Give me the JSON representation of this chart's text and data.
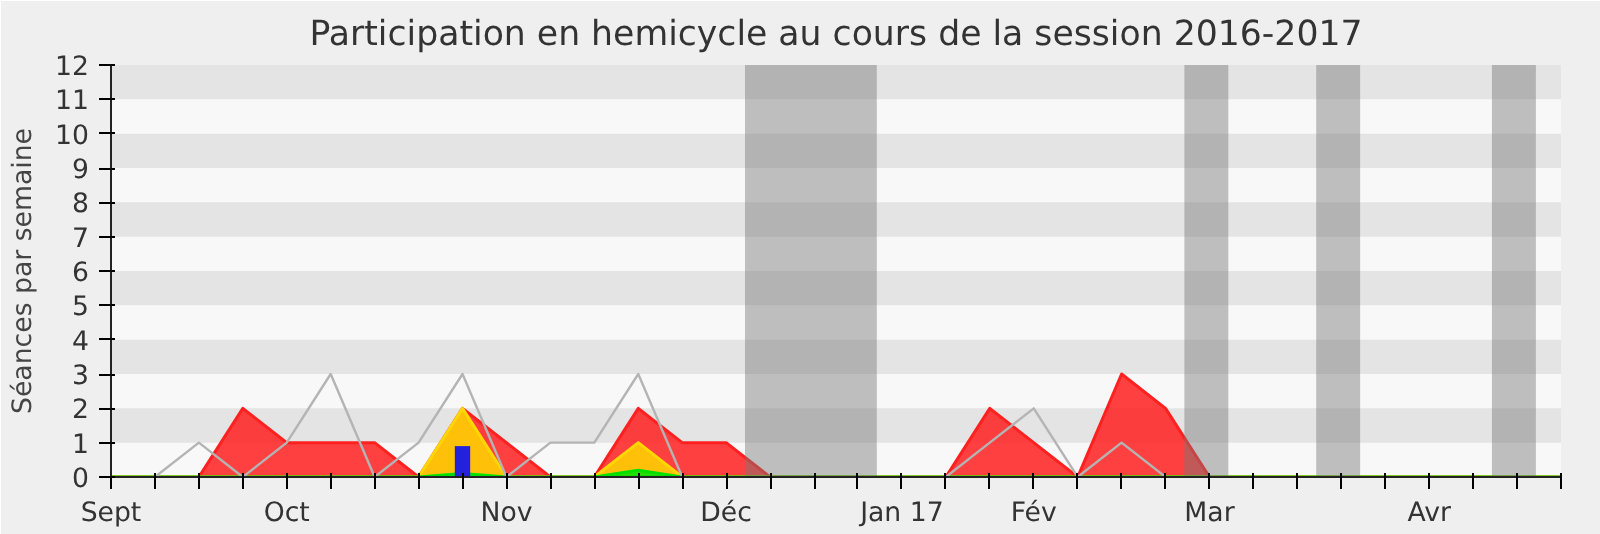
{
  "chart_data": {
    "type": "area",
    "title": "Participation en hemicycle au cours de la session 2016-2017",
    "ylabel": "Séances par semaine",
    "x": [
      "2016-09-12",
      "2016-09-19",
      "2016-09-26",
      "2016-10-03",
      "2016-10-10",
      "2016-10-17",
      "2016-10-24",
      "2016-10-31",
      "2016-11-07",
      "2016-11-14",
      "2016-11-21",
      "2016-11-28",
      "2016-12-05",
      "2016-12-12",
      "2016-12-19",
      "2016-12-26",
      "2017-01-02",
      "2017-01-09",
      "2017-01-16",
      "2017-01-23",
      "2017-01-30",
      "2017-02-06",
      "2017-02-13",
      "2017-02-20",
      "2017-02-27",
      "2017-03-06",
      "2017-03-13",
      "2017-03-20",
      "2017-03-27",
      "2017-04-03",
      "2017-04-10",
      "2017-04-17",
      "2017-04-24",
      "2017-05-01"
    ],
    "xlim": [
      "2016-09-12",
      "2017-05-01"
    ],
    "ylim": [
      0,
      12
    ],
    "yticks": [
      0,
      1,
      2,
      3,
      4,
      5,
      6,
      7,
      8,
      9,
      10,
      11,
      12
    ],
    "xticks": [
      {
        "value": "2016-09-12",
        "label": "Sept"
      },
      {
        "value": "2016-09-19",
        "label": null
      },
      {
        "value": "2016-09-26",
        "label": null
      },
      {
        "value": "2016-10-03",
        "label": null
      },
      {
        "value": "2016-10-10",
        "label": "Oct"
      },
      {
        "value": "2016-10-17",
        "label": null
      },
      {
        "value": "2016-10-24",
        "label": null
      },
      {
        "value": "2016-10-31",
        "label": null
      },
      {
        "value": "2016-11-07",
        "label": null
      },
      {
        "value": "2016-11-14",
        "label": "Nov"
      },
      {
        "value": "2016-11-21",
        "label": null
      },
      {
        "value": "2016-11-28",
        "label": null
      },
      {
        "value": "2016-12-05",
        "label": null
      },
      {
        "value": "2016-12-12",
        "label": null
      },
      {
        "value": "2016-12-19",
        "label": "Déc"
      },
      {
        "value": "2016-12-26",
        "label": null
      },
      {
        "value": "2017-01-02",
        "label": null
      },
      {
        "value": "2017-01-09",
        "label": null
      },
      {
        "value": "2017-01-16",
        "label": "Jan 17"
      },
      {
        "value": "2017-01-23",
        "label": null
      },
      {
        "value": "2017-01-30",
        "label": null
      },
      {
        "value": "2017-02-06",
        "label": "Fév"
      },
      {
        "value": "2017-02-13",
        "label": null
      },
      {
        "value": "2017-02-20",
        "label": null
      },
      {
        "value": "2017-02-27",
        "label": null
      },
      {
        "value": "2017-03-06",
        "label": "Mar"
      },
      {
        "value": "2017-03-13",
        "label": null
      },
      {
        "value": "2017-03-20",
        "label": null
      },
      {
        "value": "2017-03-27",
        "label": null
      },
      {
        "value": "2017-04-03",
        "label": null
      },
      {
        "value": "2017-04-10",
        "label": "Avr"
      },
      {
        "value": "2017-04-17",
        "label": null
      },
      {
        "value": "2017-04-24",
        "label": null
      },
      {
        "value": "2017-05-01",
        "label": null
      }
    ],
    "bands": [
      {
        "axis": "x",
        "from": "2016-12-22",
        "to": "2017-01-12",
        "color": "#777777"
      },
      {
        "axis": "x",
        "from": "2017-03-02",
        "to": "2017-03-09",
        "color": "#777777"
      },
      {
        "axis": "x",
        "from": "2017-03-23",
        "to": "2017-03-30",
        "color": "#777777"
      },
      {
        "axis": "x",
        "from": "2017-04-20",
        "to": "2017-04-27",
        "color": "#777777"
      }
    ],
    "series": [
      {
        "color": "#ff2020",
        "values": [
          0,
          0,
          0,
          2,
          1,
          1,
          1,
          0,
          2,
          1,
          0,
          0,
          2,
          1,
          1,
          0,
          0,
          0,
          0,
          0,
          2,
          1,
          0,
          3,
          2,
          0,
          0,
          0,
          0,
          0,
          0,
          0,
          0,
          0
        ]
      },
      {
        "color": "#ffd700",
        "values": [
          0,
          0,
          0,
          0,
          0,
          0,
          0,
          0,
          2,
          0,
          0,
          0,
          1,
          0,
          0,
          0,
          0,
          0,
          0,
          0,
          0,
          0,
          0,
          0,
          0,
          0,
          0,
          0,
          0,
          0,
          0,
          0,
          0,
          0
        ]
      },
      {
        "color": "#00e000",
        "values": [
          0,
          0,
          0,
          0,
          0,
          0,
          0,
          0,
          0.1,
          0,
          0,
          0,
          0.2,
          0,
          0,
          0,
          0,
          0,
          0,
          0,
          0,
          0,
          0,
          0,
          0,
          0,
          0,
          0,
          0,
          0,
          0,
          0,
          0,
          0
        ]
      },
      {
        "type": "bar",
        "color": "#2222dd",
        "x": [
          "2016-11-07"
        ],
        "values": [
          0.9
        ]
      },
      {
        "type": "line",
        "color": "#b4b4b4",
        "values": [
          null,
          0,
          1,
          0,
          1,
          3,
          0,
          1,
          3,
          0,
          1,
          1,
          3,
          0,
          null,
          null,
          null,
          null,
          null,
          0,
          1,
          2,
          0,
          1,
          0,
          null,
          null,
          null,
          null,
          null,
          null,
          null,
          null,
          null
        ]
      }
    ]
  }
}
